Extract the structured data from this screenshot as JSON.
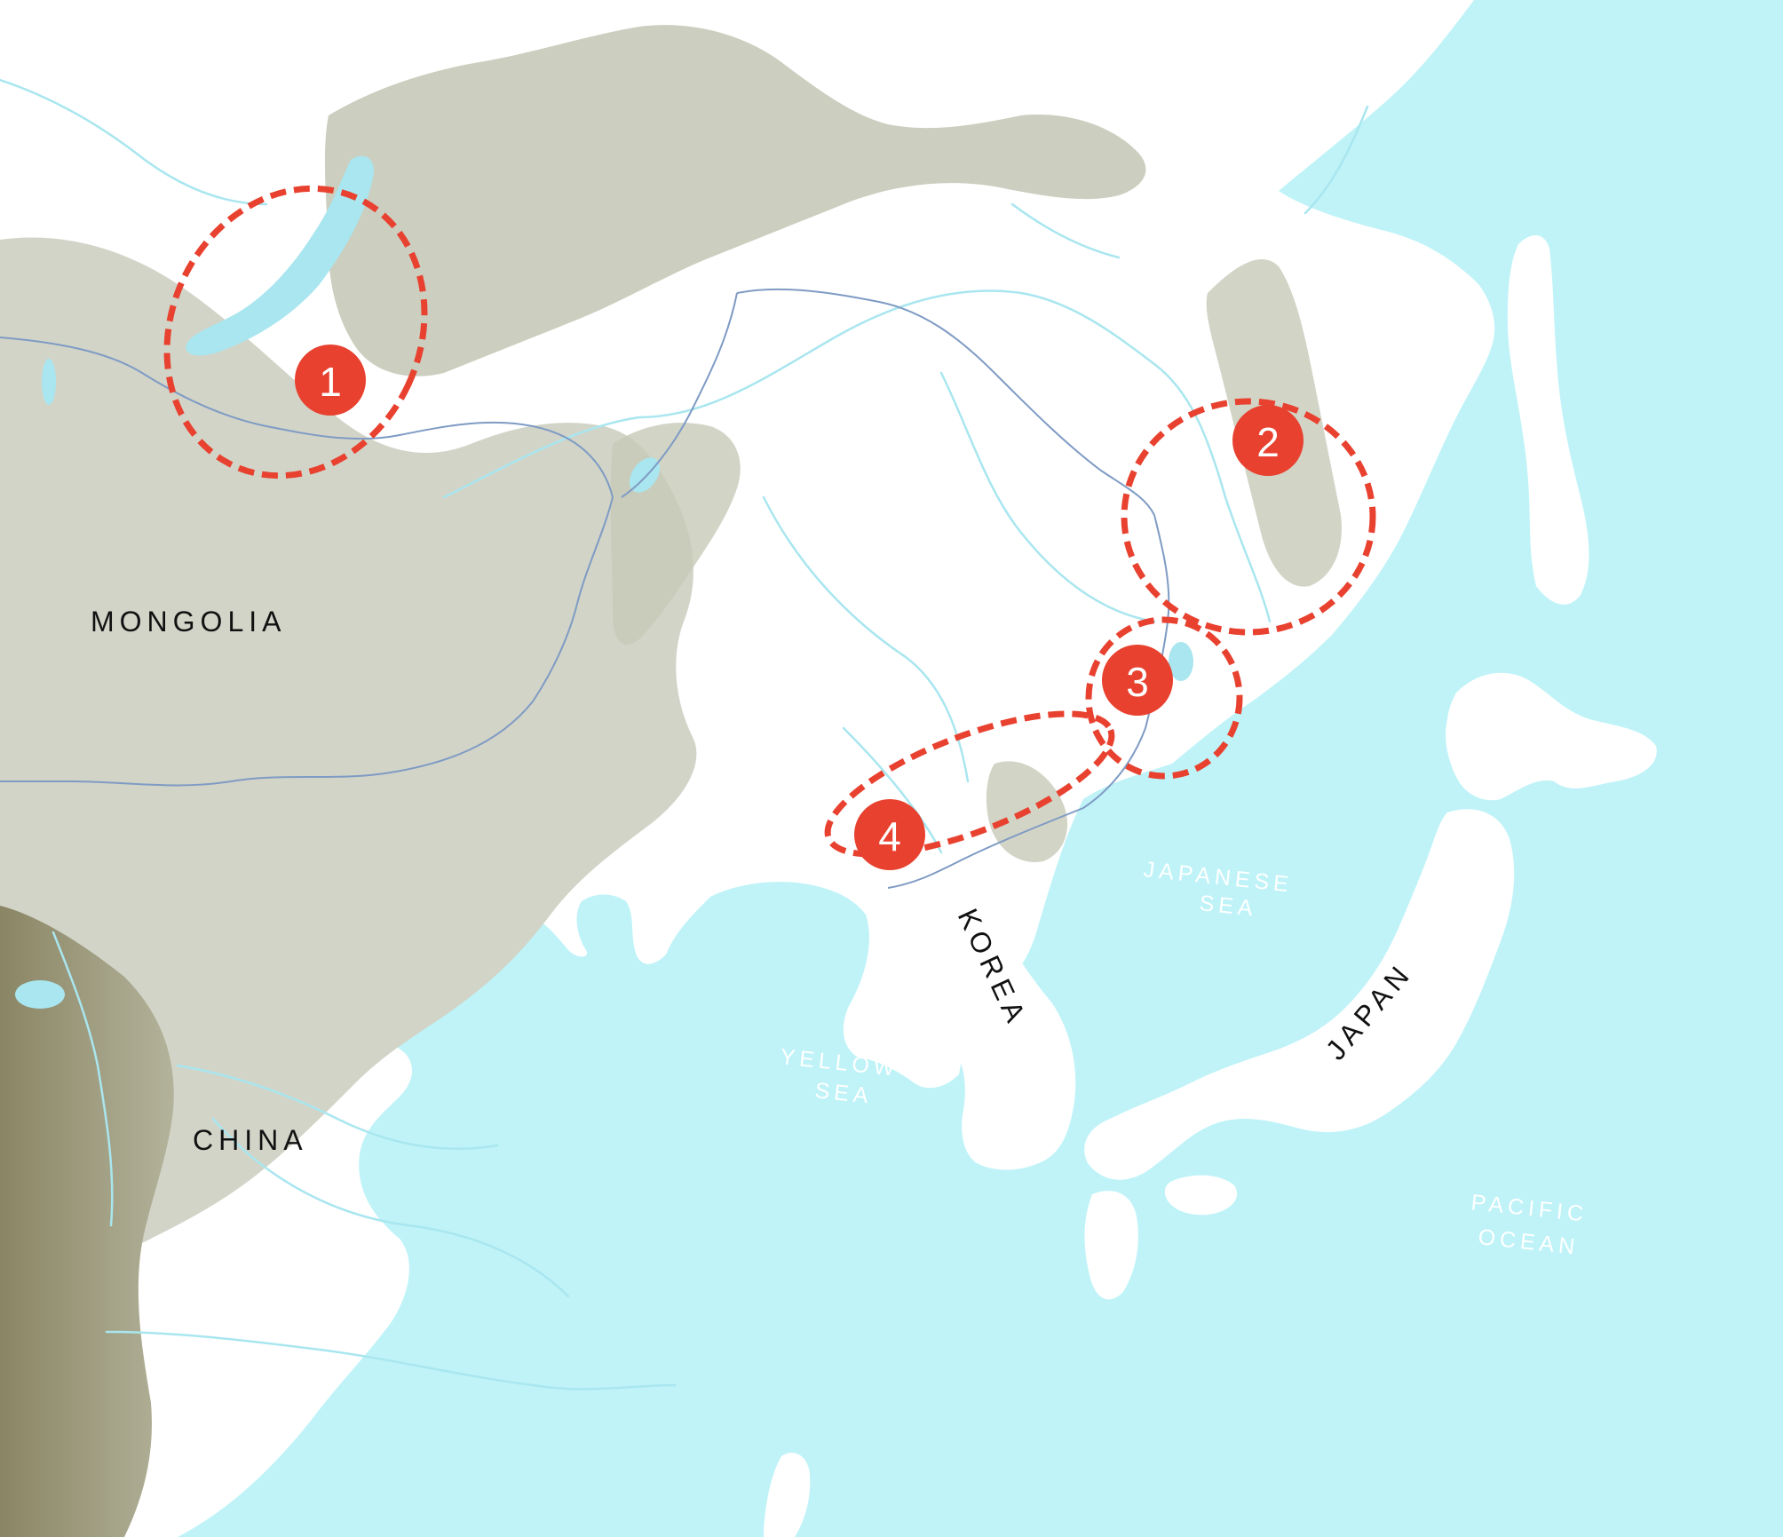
{
  "labels": {
    "mongolia": "MONGOLIA",
    "china": "CHINA",
    "korea": "KOREA",
    "japan": "JAPAN",
    "japanese_sea": [
      "JAPANESE",
      "SEA"
    ],
    "yellow_sea": [
      "YELLOW",
      "SEA"
    ],
    "pacific_ocean": [
      "PACIFIC",
      "OCEAN"
    ]
  },
  "regions": [
    {
      "number": "1"
    },
    {
      "number": "2"
    },
    {
      "number": "3"
    },
    {
      "number": "4"
    }
  ],
  "colors": {
    "sea": "#bff3f8",
    "land": "#ffffff",
    "steppe": "#d2d4c8",
    "mountains": "#bcbfab",
    "high_mountains": "#8f8c6c",
    "rivers": "#a9e6ef",
    "border": "#7f9bc4",
    "marker": "#e8412f"
  }
}
